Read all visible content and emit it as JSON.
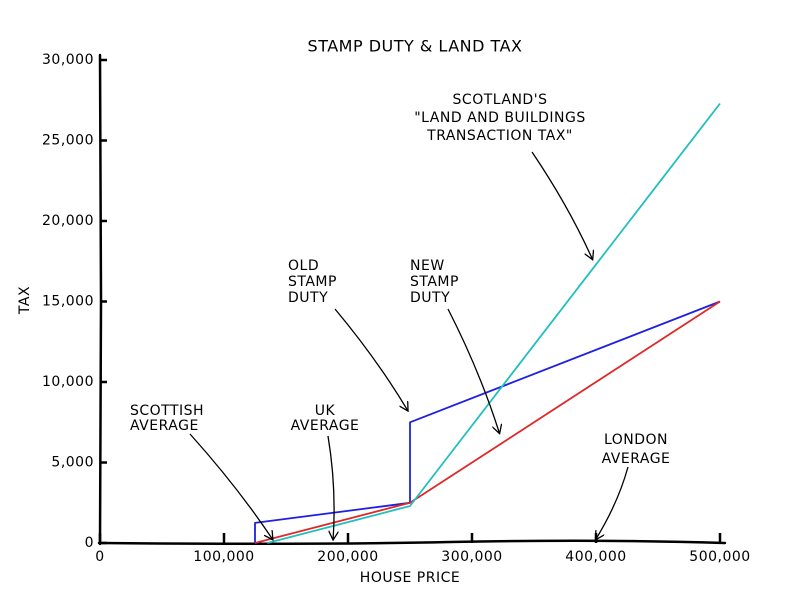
{
  "chart_data": {
    "type": "line",
    "title": "STAMP DUTY & LAND TAX",
    "x_label": "HOUSE PRICE",
    "y_label": "TAX",
    "xlim": [
      0,
      500000
    ],
    "ylim": [
      0,
      30000
    ],
    "xticks": [
      {
        "value": 0,
        "label": "0"
      },
      {
        "value": 100000,
        "label": "100,000"
      },
      {
        "value": 200000,
        "label": "200,000"
      },
      {
        "value": 300000,
        "label": "300,000"
      },
      {
        "value": 400000,
        "label": "400,000"
      },
      {
        "value": 500000,
        "label": "500,000"
      }
    ],
    "yticks": [
      0,
      {
        "value": 5000,
        "label": "5,000"
      },
      {
        "value": 10000,
        "label": "10,000"
      },
      {
        "value": 15000,
        "label": "15,000"
      },
      {
        "value": 20000,
        "label": "20,000"
      },
      {
        "value": 25000,
        "label": "25,000"
      },
      {
        "value": 30000,
        "label": "30,000"
      }
    ],
    "series": [
      {
        "color": "#2020e0",
        "x": [
          125000,
          125000,
          250000,
          250000,
          500000
        ],
        "values": [
          0,
          1250,
          2500,
          7500,
          15000
        ]
      },
      {
        "color": "#e02828",
        "x": [
          125000,
          250000,
          500000
        ],
        "values": [
          0,
          2500,
          15000
        ]
      },
      {
        "color": "#22bfbf",
        "x": [
          135000,
          250000,
          500000
        ],
        "values": [
          0,
          2300,
          27300
        ]
      }
    ],
    "annotations": [
      {
        "text": [
          "SCOTTISH",
          "AVERAGE"
        ],
        "x": 139000,
        "y": 0
      },
      {
        "text": [
          "UK",
          "AVERAGE"
        ],
        "x": 188000,
        "y": 0
      },
      {
        "text": [
          "LONDON",
          "AVERAGE"
        ],
        "x": 400000,
        "y": 0
      },
      {
        "text": [
          "OLD",
          "STAMP",
          "DUTY"
        ],
        "x": 248000,
        "y": 8000
      },
      {
        "text": [
          "NEW",
          "STAMP",
          "DUTY"
        ],
        "x": 322000,
        "y": 6600
      },
      {
        "text": [
          "SCOTLAND'S",
          "\"LAND AND BUILDINGS",
          "TRANSACTION TAX\""
        ],
        "x": 397000,
        "y": 17400
      }
    ]
  }
}
